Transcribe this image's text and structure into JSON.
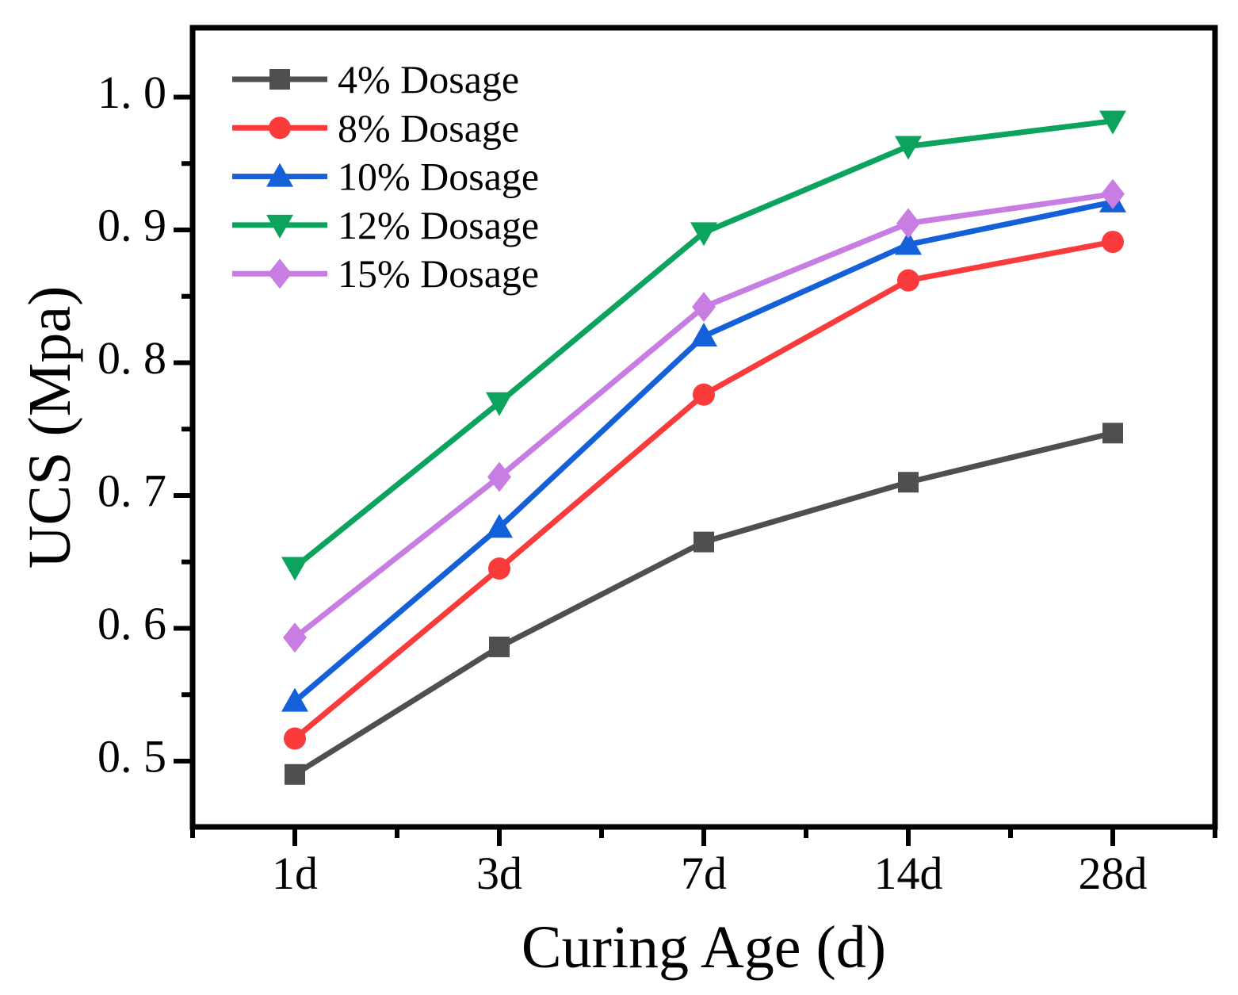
{
  "figure": {
    "background_color": "#ffffff",
    "frame_color": "#000000",
    "text_color": "#000000"
  },
  "chart_data": {
    "type": "line",
    "title": "",
    "xlabel": "Curing Age (d)",
    "ylabel": "UCS (Mpa)",
    "categories": [
      "1d",
      "3d",
      "7d",
      "14d",
      "28d"
    ],
    "series": [
      {
        "name": "4% Dosage",
        "marker": "square",
        "color": "#4f4f4f",
        "values": [
          0.49,
          0.586,
          0.665,
          0.71,
          0.747
        ]
      },
      {
        "name": "8% Dosage",
        "marker": "circle",
        "color": "#f93c3b",
        "values": [
          0.517,
          0.645,
          0.776,
          0.862,
          0.891
        ]
      },
      {
        "name": "10% Dosage",
        "marker": "triangle-up",
        "color": "#1360d9",
        "values": [
          0.545,
          0.676,
          0.82,
          0.889,
          0.921
        ]
      },
      {
        "name": "12% Dosage",
        "marker": "triangle-down",
        "color": "#0ba35e",
        "values": [
          0.646,
          0.77,
          0.898,
          0.963,
          0.982
        ]
      },
      {
        "name": "15% Dosage",
        "marker": "diamond",
        "color": "#c77de2",
        "values": [
          0.593,
          0.714,
          0.842,
          0.905,
          0.927
        ]
      }
    ],
    "y_axis": {
      "ticks": [
        {
          "value": 0.5,
          "label": "0. 5"
        },
        {
          "value": 0.6,
          "label": "0. 6"
        },
        {
          "value": 0.7,
          "label": "0. 7"
        },
        {
          "value": 0.8,
          "label": "0. 8"
        },
        {
          "value": 0.9,
          "label": "0. 9"
        },
        {
          "value": 1.0,
          "label": "1. 0"
        }
      ],
      "minor_ticks": [
        0.55,
        0.65,
        0.75,
        0.85,
        0.95
      ],
      "range": [
        0.45,
        1.05
      ]
    },
    "x_axis": {
      "tick_labels": [
        "1d",
        "3d",
        "7d",
        "14d",
        "28d"
      ]
    },
    "legend_position": "top-left",
    "grid": false
  }
}
